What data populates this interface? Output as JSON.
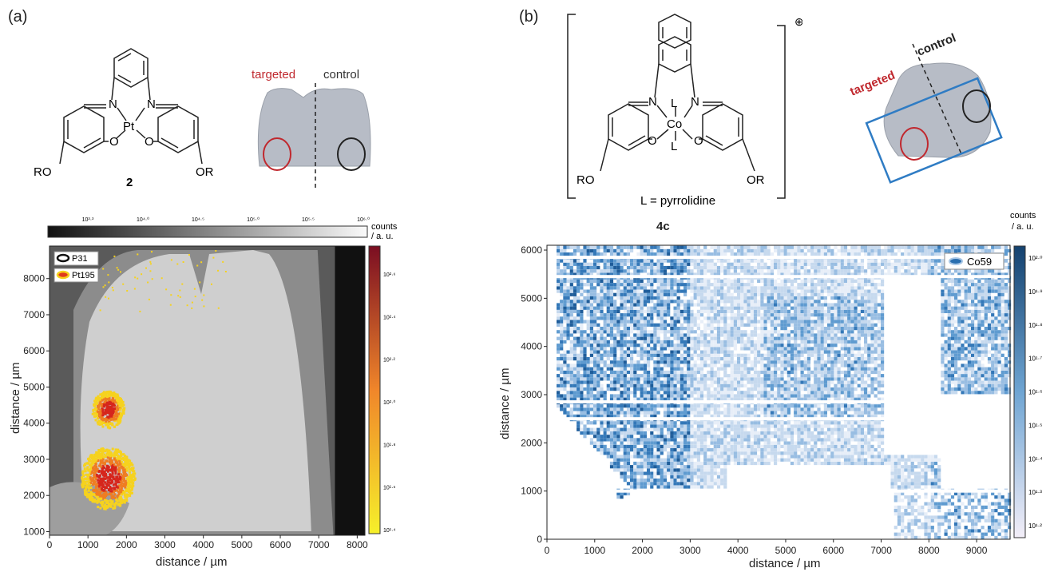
{
  "panel_a": {
    "label": "(a)",
    "compound_number": "2",
    "metal": "Pt",
    "atoms": {
      "n1": "N",
      "n2": "N",
      "o1": "O",
      "o2": "O",
      "ro": "RO",
      "or": "OR"
    },
    "brain_labels": {
      "targeted": "targeted",
      "control": "control"
    },
    "gray_colorbar": {
      "ticks": [
        "10³·³",
        "10⁴·⁰",
        "10⁴·⁵",
        "10⁵·⁰",
        "10⁵·⁵",
        "10⁶·⁰"
      ],
      "unit_line1": "counts",
      "unit_line2": "/ a. u."
    },
    "legend": [
      "P31",
      "Pt195"
    ],
    "red_colorbar_ticks": [
      "10²·⁶",
      "10²·⁴",
      "10²·²",
      "10²·⁰",
      "10¹·⁸",
      "10¹·⁶",
      "10¹·⁴"
    ],
    "colors": {
      "targeted": "#c0282e",
      "control": "#222222",
      "hot": "#e03a1e",
      "warm": "#f6d21e"
    }
  },
  "panel_b": {
    "label": "(b)",
    "compound_number": "4c",
    "metal": "Co",
    "charge": "⊕",
    "ligand_note": "L  =  pyrrolidine",
    "atoms": {
      "n1": "N",
      "n2": "N",
      "o1": "O",
      "o2": "O",
      "l1": "L",
      "l2": "L",
      "ro": "RO",
      "or": "OR"
    },
    "brain_labels": {
      "targeted": "targeted",
      "control": "control"
    },
    "colorbar": {
      "unit_line1": "counts",
      "unit_line2": "/ a. u.",
      "ticks": [
        "10²·⁰",
        "10¹·⁹",
        "10¹·⁸",
        "10¹·⁷",
        "10¹·⁶",
        "10¹·⁵",
        "10¹·⁴",
        "10¹·³",
        "10¹·²"
      ]
    },
    "legend": [
      "Co59"
    ],
    "colors": {
      "co": "#2a6fb0",
      "box": "#2f7cc4"
    }
  },
  "chart_data": [
    {
      "type": "heatmap",
      "panel": "a",
      "xlabel": "distance / µm",
      "ylabel": "distance / µm",
      "xlim": [
        0,
        8200
      ],
      "ylim": [
        900,
        8900
      ],
      "xticks": [
        0,
        1000,
        2000,
        3000,
        4000,
        5000,
        6000,
        7000,
        8000
      ],
      "yticks": [
        1000,
        2000,
        3000,
        4000,
        5000,
        6000,
        7000,
        8000
      ],
      "series": [
        {
          "name": "P31"
        },
        {
          "name": "Pt195"
        }
      ],
      "hotspots": [
        {
          "x": 1500,
          "y": 4400,
          "radius": 420
        },
        {
          "x": 1500,
          "y": 2500,
          "radius": 700
        }
      ]
    },
    {
      "type": "heatmap",
      "panel": "b",
      "xlabel": "distance / µm",
      "ylabel": "distance / µm",
      "xlim": [
        0,
        9700
      ],
      "ylim": [
        0,
        6100
      ],
      "xticks": [
        0,
        1000,
        2000,
        3000,
        4000,
        5000,
        6000,
        7000,
        8000,
        9000
      ],
      "yticks": [
        0,
        1000,
        2000,
        3000,
        4000,
        5000,
        6000
      ],
      "series": [
        {
          "name": "Co59"
        }
      ],
      "gap_lines_y": [
        5850,
        5450,
        2850,
        2500,
        1000
      ]
    }
  ]
}
